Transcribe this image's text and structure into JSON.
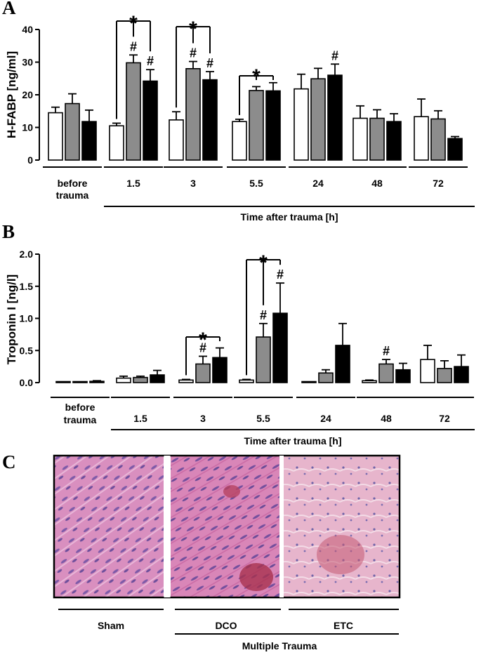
{
  "panel_labels": [
    "A",
    "B",
    "C"
  ],
  "colors": {
    "sham": "#ffffff",
    "dco": "#8c8c8c",
    "etc": "#000000"
  },
  "chart_data": [
    {
      "panel": "A",
      "type": "bar",
      "ylabel": "H-FABP [ng/ml]",
      "xlabel": "Time after trauma [h]",
      "categories": [
        "before trauma",
        "1.5",
        "3",
        "5.5",
        "24",
        "48",
        "72"
      ],
      "ylim": [
        0,
        40
      ],
      "yticks": [
        "0",
        "10",
        "20",
        "30",
        "40"
      ],
      "grid": false,
      "series": [
        {
          "values": [
            14.5,
            10.5,
            12.3,
            11.8,
            21.8,
            12.8,
            13.3
          ],
          "errors": [
            1.7,
            0.8,
            2.5,
            0.7,
            4.5,
            3.8,
            5.4
          ]
        },
        {
          "values": [
            17.3,
            29.8,
            28.0,
            21.3,
            24.9,
            12.8,
            12.6
          ],
          "errors": [
            3.0,
            2.4,
            2.2,
            1.2,
            3.2,
            2.6,
            2.5
          ]
        },
        {
          "values": [
            11.8,
            24.2,
            24.6,
            21.2,
            26.0,
            11.8,
            6.6
          ],
          "errors": [
            3.5,
            3.5,
            2.5,
            2.5,
            3.4,
            2.4,
            0.6
          ]
        }
      ],
      "hash_marks": [
        [
          1,
          1
        ],
        [
          1,
          2
        ],
        [
          2,
          1
        ],
        [
          2,
          2
        ],
        [
          4,
          2
        ]
      ],
      "hash_symbol": "#",
      "significance": [
        {
          "group": 1,
          "symbol": "*",
          "to": [
            1,
            2
          ]
        },
        {
          "group": 2,
          "symbol": "*",
          "to": [
            1,
            2
          ]
        },
        {
          "group": 3,
          "symbol": "*",
          "to": [
            1,
            2
          ]
        }
      ]
    },
    {
      "panel": "B",
      "type": "bar",
      "ylabel": "Troponin I [ng/l]",
      "xlabel": "Time after trauma [h]",
      "categories": [
        "before trauma",
        "1.5",
        "3",
        "5.5",
        "24",
        "48",
        "72"
      ],
      "ylim": [
        0,
        2.0
      ],
      "yticks": [
        "0.0",
        "0.5",
        "1.0",
        "1.5",
        "2.0"
      ],
      "grid": false,
      "series": [
        {
          "values": [
            0.01,
            0.07,
            0.04,
            0.04,
            0.01,
            0.03,
            0.36
          ],
          "errors": [
            0.0,
            0.03,
            0.01,
            0.01,
            0.0,
            0.01,
            0.22
          ]
        },
        {
          "values": [
            0.01,
            0.08,
            0.29,
            0.71,
            0.15,
            0.29,
            0.22
          ],
          "errors": [
            0.0,
            0.02,
            0.12,
            0.21,
            0.05,
            0.07,
            0.12
          ]
        },
        {
          "values": [
            0.02,
            0.12,
            0.39,
            1.08,
            0.58,
            0.2,
            0.25
          ],
          "errors": [
            0.01,
            0.07,
            0.15,
            0.47,
            0.34,
            0.1,
            0.18
          ]
        }
      ],
      "hash_marks": [
        [
          2,
          1
        ],
        [
          3,
          1
        ],
        [
          3,
          2
        ],
        [
          5,
          1
        ]
      ],
      "hash_symbol": "#",
      "significance": [
        {
          "group": 2,
          "symbol": "*",
          "to": [
            2
          ]
        },
        {
          "group": 3,
          "symbol": "*",
          "to": [
            1,
            2
          ]
        }
      ]
    }
  ],
  "histology": {
    "labels": [
      "Sham",
      "DCO",
      "ETC"
    ],
    "group_label": "Multiple Trauma"
  }
}
